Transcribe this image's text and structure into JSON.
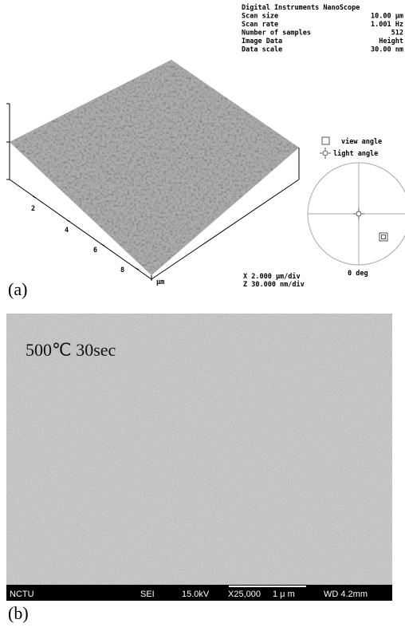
{
  "afm": {
    "header": [
      {
        "key": "Digital Instruments NanoScope",
        "value": null
      },
      {
        "key": "Scan size",
        "value": "10.00 µm"
      },
      {
        "key": "Scan rate",
        "value": "1.001 Hz"
      },
      {
        "key": "Number of samples",
        "value": "512"
      },
      {
        "key": "Image Data",
        "value": "Height"
      },
      {
        "key": "Data scale",
        "value": "30.00 nm"
      }
    ],
    "axis_labels": [
      "2",
      "4",
      "6",
      "8"
    ],
    "axis_unit": "µm",
    "scale": [
      "X  2.000 µm/div",
      "Z  30.000 nm/div"
    ],
    "legend": [
      "view angle",
      "light angle"
    ],
    "angle": "0 deg",
    "panel": "(a)"
  },
  "sem": {
    "annotation": "500℃ 30sec",
    "bar": [
      "NCTU",
      "SEI",
      "15.0kV",
      "X25,000",
      "1 μ m",
      "WD 4.2mm"
    ],
    "panel": "(b)"
  }
}
